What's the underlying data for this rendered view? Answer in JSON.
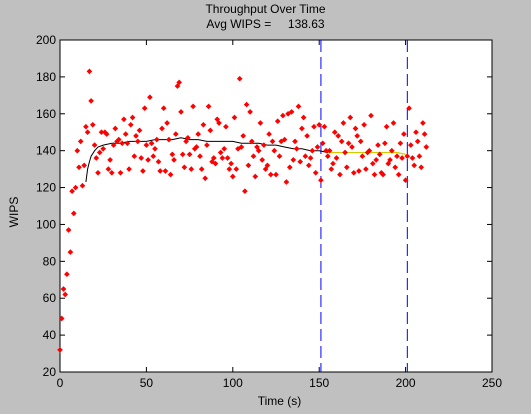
{
  "window": {
    "background": "#c0c0c0"
  },
  "chart_data": {
    "type": "scatter",
    "title": "Throughput Over Time",
    "subtitle_label": "Avg WIPS =",
    "subtitle_value": "138.63",
    "xlabel": "Time (s)",
    "ylabel": "WIPS",
    "xlim": [
      0,
      250
    ],
    "ylim": [
      20,
      200
    ],
    "xticks": [
      0,
      50,
      100,
      150,
      200,
      250
    ],
    "yticks": [
      20,
      40,
      60,
      80,
      100,
      120,
      140,
      160,
      180,
      200
    ],
    "grid": false,
    "colors": {
      "points": "#ff0000",
      "running_avg": "#000000",
      "markers": "#0000ff",
      "segment_highlight": "#ffff00",
      "plot_bg": "#ffffff"
    },
    "vertical_markers": [
      151,
      201
    ],
    "series": [
      {
        "kind": "points",
        "x": [
          0,
          1,
          2,
          3,
          4,
          5,
          6,
          7,
          8,
          9,
          10,
          11,
          12,
          13,
          14,
          15,
          16,
          17,
          18,
          19,
          20,
          21,
          22,
          23,
          24,
          25,
          26,
          27,
          28,
          29,
          30,
          31,
          32,
          33,
          34,
          35,
          36,
          37,
          38,
          39,
          40,
          41,
          42,
          43,
          44,
          45,
          46,
          47,
          48,
          49,
          50,
          51,
          52,
          53,
          54,
          55,
          56,
          57,
          58,
          59,
          60,
          61,
          62,
          63,
          64,
          65,
          66,
          67,
          68,
          69,
          70,
          71,
          72,
          73,
          74,
          75,
          76,
          77,
          78,
          79,
          80,
          81,
          82,
          83,
          84,
          85,
          86,
          87,
          88,
          89,
          90,
          91,
          92,
          93,
          94,
          95,
          96,
          97,
          98,
          99,
          100,
          101,
          102,
          103,
          104,
          105,
          106,
          107,
          108,
          109,
          110,
          111,
          112,
          113,
          114,
          115,
          116,
          117,
          118,
          119,
          120,
          121,
          122,
          123,
          124,
          125,
          126,
          127,
          128,
          129,
          130,
          131,
          132,
          133,
          134,
          135,
          136,
          137,
          138,
          139,
          140,
          141,
          142,
          143,
          144,
          145,
          146,
          147,
          148,
          149,
          150,
          151,
          152,
          153,
          154,
          155,
          156,
          157,
          158,
          159,
          160,
          161,
          162,
          163,
          164,
          165,
          166,
          167,
          168,
          169,
          170,
          171,
          172,
          173,
          174,
          175,
          176,
          177,
          178,
          179,
          180,
          181,
          182,
          183,
          184,
          185,
          186,
          187,
          188,
          189,
          190,
          191,
          192,
          193,
          194,
          195,
          196,
          197,
          198,
          199,
          200,
          201,
          202,
          203,
          204,
          205,
          206,
          207,
          208,
          209,
          210,
          211,
          212
        ],
        "y": [
          32,
          49,
          65,
          62,
          73,
          97,
          85,
          118,
          106,
          120,
          140,
          131,
          145,
          121,
          132,
          153,
          150,
          183,
          167,
          154,
          143,
          136,
          128,
          139,
          150,
          141,
          150,
          149,
          130,
          135,
          128,
          143,
          152,
          145,
          146,
          128,
          144,
          157,
          149,
          144,
          130,
          154,
          158,
          137,
          148,
          145,
          151,
          136,
          129,
          163,
          143,
          135,
          169,
          144,
          137,
          141,
          146,
          134,
          129,
          152,
          163,
          129,
          155,
          146,
          127,
          138,
          135,
          149,
          175,
          177,
          161,
          138,
          131,
          145,
          147,
          138,
          130,
          164,
          141,
          142,
          149,
          137,
          130,
          154,
          125,
          143,
          164,
          151,
          134,
          136,
          133,
          157,
          155,
          139,
          136,
          141,
          153,
          136,
          130,
          133,
          126,
          158,
          130,
          141,
          179,
          142,
          148,
          118,
          165,
          132,
          161,
          145,
          137,
          126,
          142,
          140,
          155,
          135,
          143,
          130,
          132,
          149,
          127,
          145,
          140,
          127,
          156,
          137,
          145,
          159,
          146,
          123,
          160,
          131,
          161,
          135,
          145,
          141,
          164,
          134,
          152,
          158,
          137,
          148,
          132,
          136,
          140,
          153,
          128,
          142,
          154,
          124,
          144,
          153,
          140,
          137,
          140,
          130,
          133,
          150,
          136,
          148,
          127,
          145,
          155,
          139,
          131,
          144,
          158,
          142,
          128,
          152,
          148,
          129,
          145,
          137,
          154,
          130,
          139,
          140,
          159,
          133,
          127,
          135,
          143,
          138,
          128,
          127,
          144,
          153,
          133,
          135,
          140,
          155,
          131,
          137,
          127,
          144,
          136,
          149,
          124,
          137,
          163,
          143,
          136,
          132,
          150,
          145,
          137,
          131,
          155,
          149,
          142
        ]
      },
      {
        "kind": "running_average",
        "x": [
          15,
          16,
          17,
          18,
          20,
          22,
          25,
          30,
          35,
          40,
          45,
          50,
          55,
          60,
          65,
          70,
          75,
          80,
          85,
          90,
          95,
          100,
          105,
          110,
          115,
          120,
          125,
          130,
          135,
          140,
          145,
          150,
          155,
          160,
          165,
          170,
          175,
          180,
          185,
          190,
          195,
          200
        ],
        "y": [
          123,
          130,
          134,
          137,
          140,
          142,
          143,
          144,
          144,
          145,
          145,
          145,
          146,
          146,
          146,
          147,
          146,
          146,
          145,
          145,
          145,
          145,
          144,
          144,
          144,
          143,
          143,
          142,
          141,
          141,
          140,
          140,
          139,
          139,
          139,
          139,
          139,
          139,
          139,
          139,
          139,
          138
        ]
      }
    ]
  }
}
